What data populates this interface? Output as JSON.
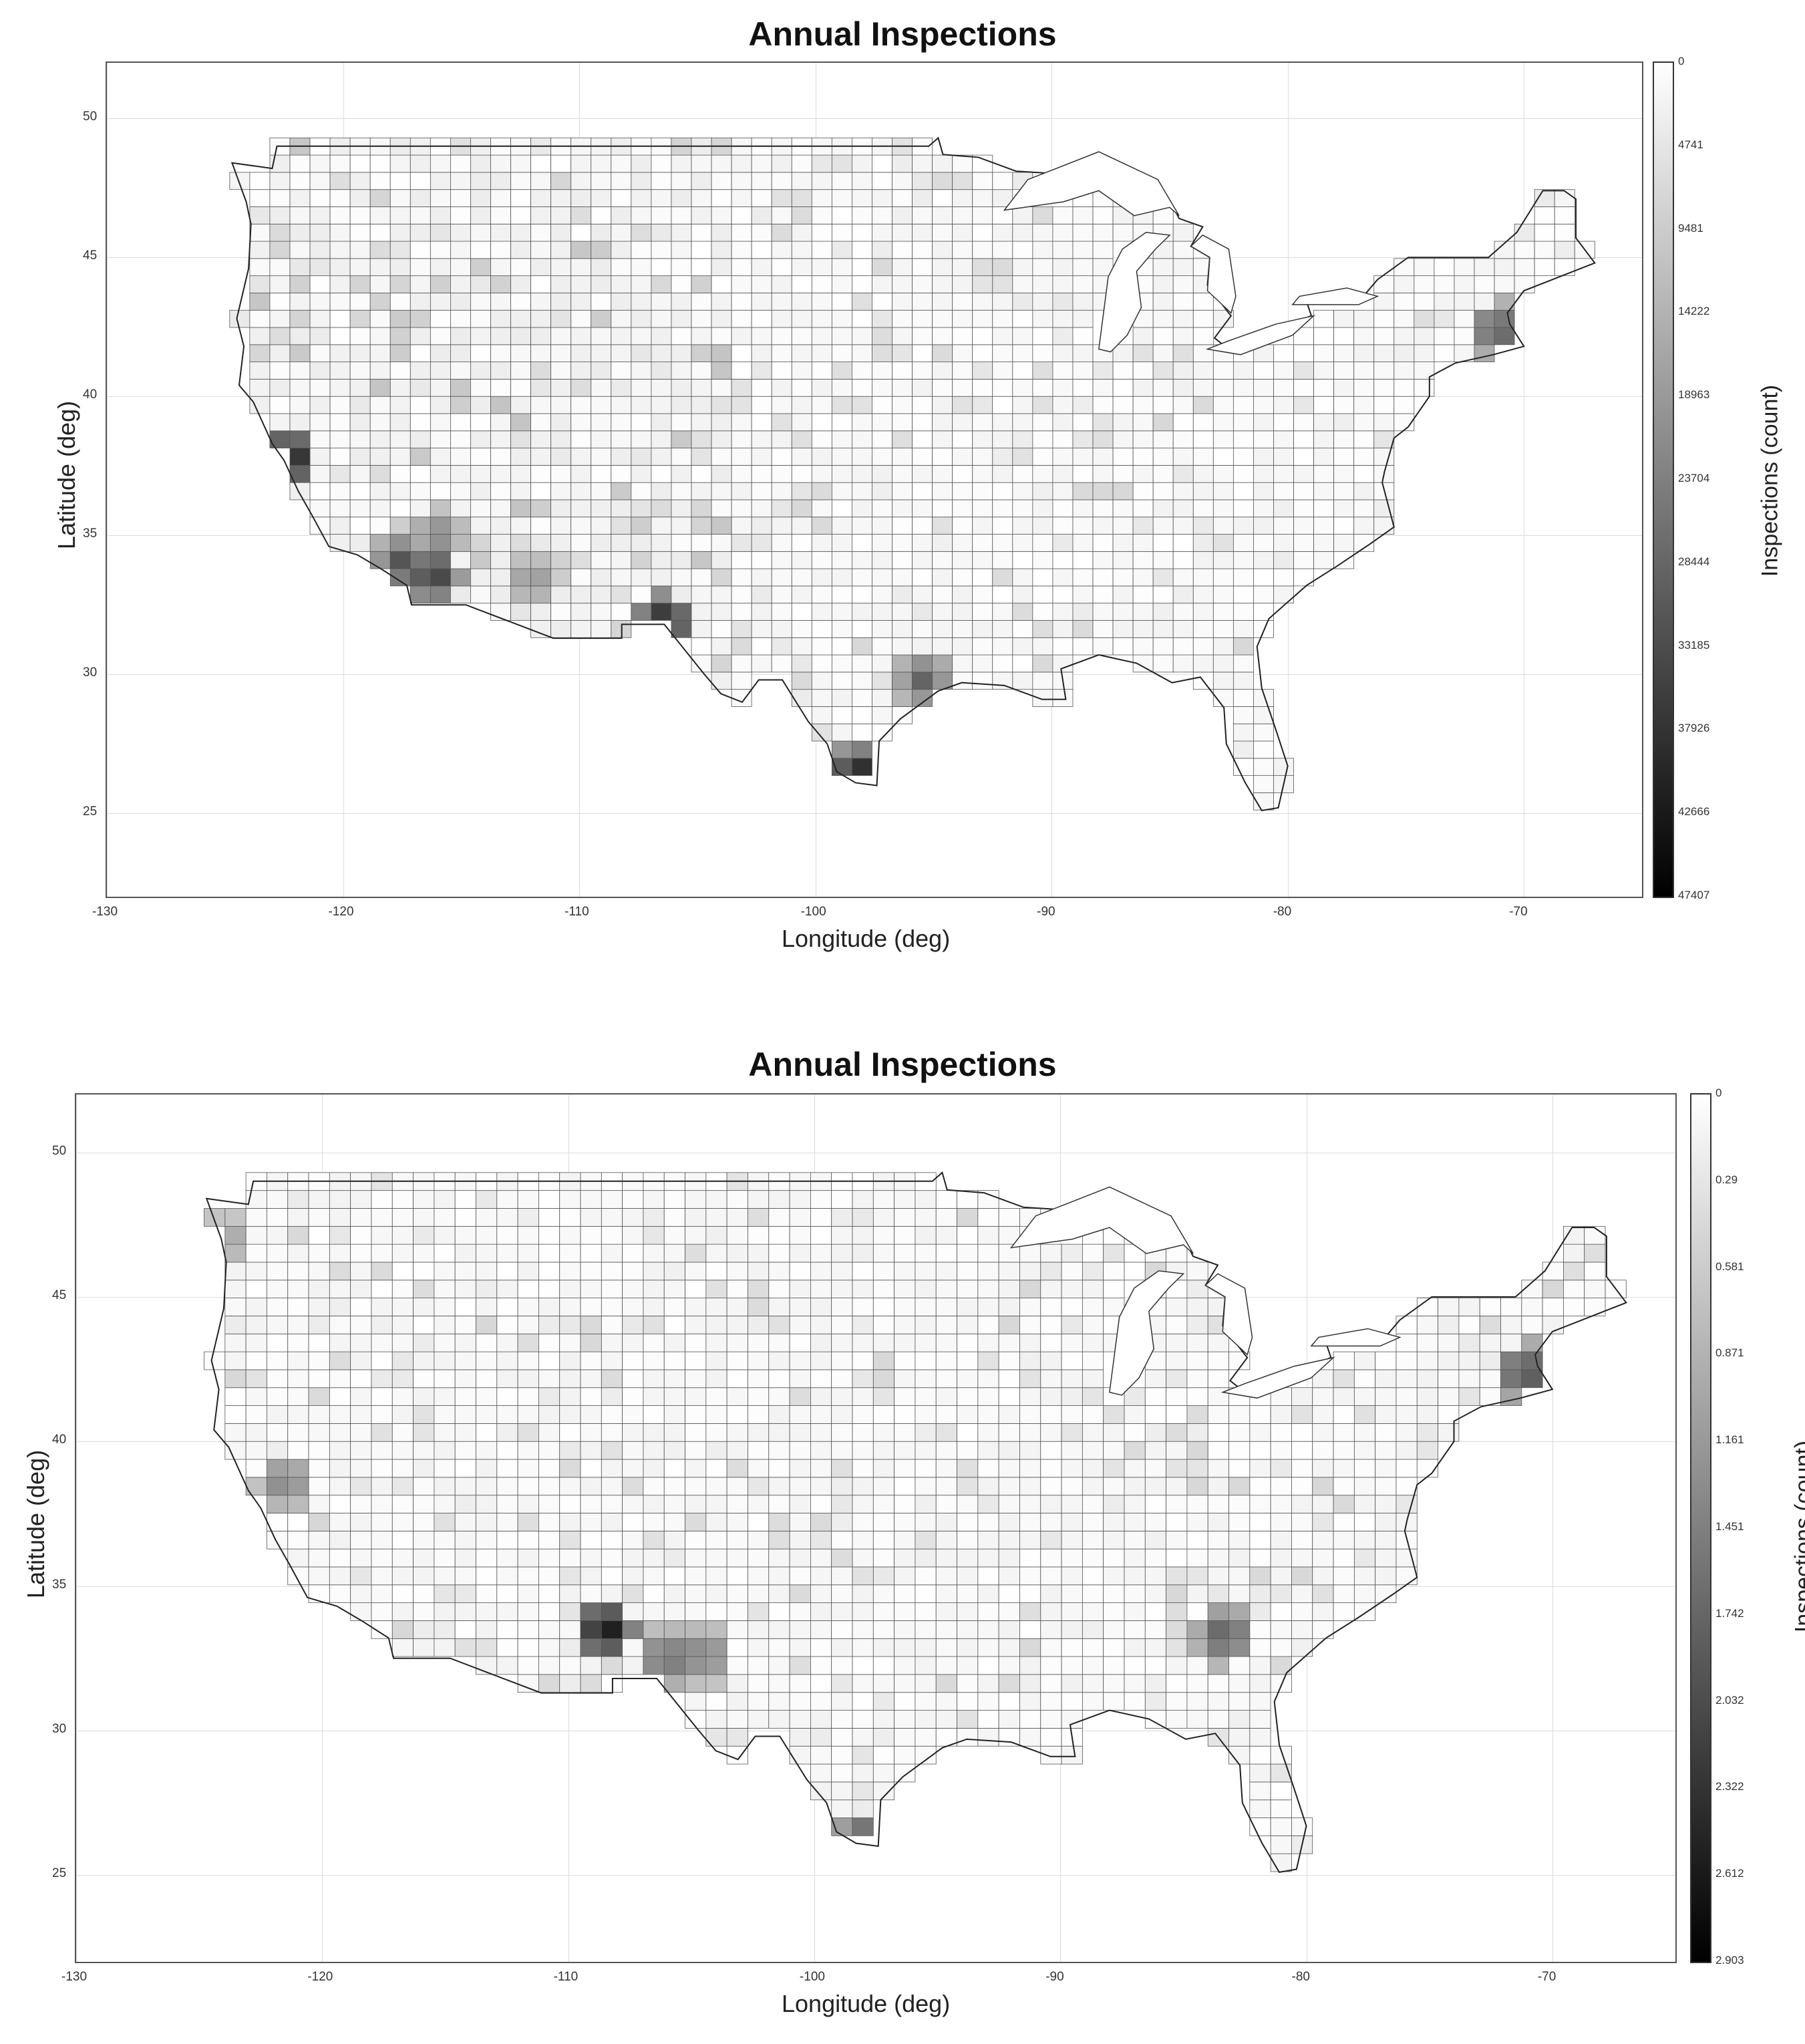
{
  "chart_data": [
    {
      "type": "heatmap",
      "title": "Annual Inspections",
      "xlabel": "Longitude (deg)",
      "ylabel": "Latitude (deg)",
      "colorbar_label": "Inspections (count)",
      "xlim": [
        -130,
        -65
      ],
      "ylim": [
        22,
        52
      ],
      "x_ticks": [
        "-130",
        "-120",
        "-110",
        "-100",
        "-90",
        "-80",
        "-70"
      ],
      "y_ticks": [
        "25",
        "30",
        "35",
        "40",
        "45",
        "50"
      ],
      "colorbar_ticks": [
        "0",
        "4741",
        "9481",
        "14222",
        "18963",
        "23704",
        "28444",
        "33185",
        "37926",
        "42666",
        "47407"
      ],
      "colorbar_range": [
        0,
        47407
      ],
      "colormap": "gray (white = 0, black = max)",
      "grid": true,
      "hotspots": [
        {
          "lon": -116.2,
          "lat": 33.6,
          "value": 40000
        },
        {
          "lon": -117.5,
          "lat": 34.0,
          "value": 34000
        },
        {
          "lon": -122.3,
          "lat": 37.8,
          "value": 47407
        },
        {
          "lon": -106.4,
          "lat": 31.9,
          "value": 45000
        },
        {
          "lon": -98.2,
          "lat": 26.4,
          "value": 46000
        },
        {
          "lon": -97.5,
          "lat": 26.1,
          "value": 38000
        },
        {
          "lon": -95.4,
          "lat": 29.8,
          "value": 30000
        },
        {
          "lon": -71.1,
          "lat": 42.4,
          "value": 33000
        },
        {
          "lon": -116.0,
          "lat": 35.0,
          "value": 24000
        },
        {
          "lon": -112.0,
          "lat": 33.4,
          "value": 21000
        }
      ]
    },
    {
      "type": "heatmap",
      "title": "Annual Inspections",
      "xlabel": "Longitude (deg)",
      "ylabel": "Latitude (deg)",
      "colorbar_label": "Inspections (count)",
      "xlim": [
        -130,
        -65
      ],
      "ylim": [
        22,
        52
      ],
      "x_ticks": [
        "-130",
        "-120",
        "-110",
        "-100",
        "-90",
        "-80",
        "-70"
      ],
      "y_ticks": [
        "25",
        "30",
        "35",
        "40",
        "45",
        "50"
      ],
      "colorbar_ticks": [
        "0",
        "0.29",
        "0.581",
        "0.871",
        "1.161",
        "1.451",
        "1.742",
        "2.032",
        "2.322",
        "2.612",
        "2.903"
      ],
      "colorbar_range": [
        0,
        2.903
      ],
      "colormap": "gray (white = 0, black = max)",
      "grid": true,
      "hotspots": [
        {
          "lon": -108.5,
          "lat": 33.5,
          "value": 2.903
        },
        {
          "lon": -106.0,
          "lat": 32.5,
          "value": 1.8
        },
        {
          "lon": -104.5,
          "lat": 32.6,
          "value": 1.6
        },
        {
          "lon": -98.0,
          "lat": 26.2,
          "value": 2.1
        },
        {
          "lon": -71.1,
          "lat": 42.4,
          "value": 2.2
        },
        {
          "lon": -121.5,
          "lat": 38.6,
          "value": 1.5
        },
        {
          "lon": -83.3,
          "lat": 33.3,
          "value": 2.0
        },
        {
          "lon": -124.0,
          "lat": 47.0,
          "value": 1.2
        }
      ]
    }
  ]
}
